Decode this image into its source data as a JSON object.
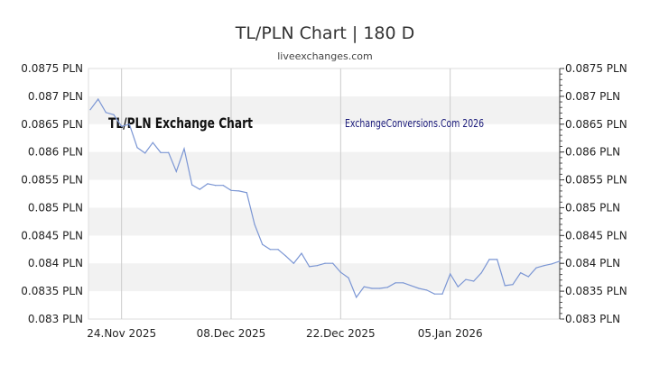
{
  "header": {
    "title": "TL/PLN Chart | 180 D",
    "subtitle": "liveexchanges.com"
  },
  "chart_data": {
    "type": "line",
    "title": "TL/PLN Chart | 180 D",
    "subtitle": "liveexchanges.com",
    "annotations": [
      "TL/PLN Exchange Chart",
      "ExchangeConversions.Com 2026"
    ],
    "ylim": [
      0.083,
      0.0875
    ],
    "y_ticks": [
      "0.0875 PLN",
      "0.087 PLN",
      "0.0865 PLN",
      "0.086 PLN",
      "0.0855 PLN",
      "0.085 PLN",
      "0.0845 PLN",
      "0.084 PLN",
      "0.0835 PLN",
      "0.083 PLN"
    ],
    "y_tick_values": [
      0.0875,
      0.087,
      0.0865,
      0.086,
      0.0855,
      0.085,
      0.0845,
      0.084,
      0.0835,
      0.083
    ],
    "x_ticks": [
      {
        "label": "24.Nov 2025",
        "date": "2025-11-24"
      },
      {
        "label": "08.Dec 2025",
        "date": "2025-12-08"
      },
      {
        "label": "22.Dec 2025",
        "date": "2025-12-22"
      },
      {
        "label": "05.Jan 2026",
        "date": "2026-01-05"
      }
    ],
    "grid": "alternating horizontal bands, vertical lines at x ticks",
    "line_color": "#7b96d4",
    "band_color": "#f2f2f2",
    "x": [
      "2025-11-20",
      "2025-11-21",
      "2025-11-22",
      "2025-11-23",
      "2025-11-24",
      "2025-11-25",
      "2025-11-26",
      "2025-11-27",
      "2025-11-28",
      "2025-11-29",
      "2025-11-30",
      "2025-12-01",
      "2025-12-02",
      "2025-12-03",
      "2025-12-04",
      "2025-12-05",
      "2025-12-06",
      "2025-12-07",
      "2025-12-08",
      "2025-12-09",
      "2025-12-10",
      "2025-12-11",
      "2025-12-12",
      "2025-12-13",
      "2025-12-14",
      "2025-12-15",
      "2025-12-16",
      "2025-12-17",
      "2025-12-18",
      "2025-12-19",
      "2025-12-20",
      "2025-12-21",
      "2025-12-22",
      "2025-12-23",
      "2025-12-24",
      "2025-12-25",
      "2025-12-26",
      "2025-12-27",
      "2025-12-28",
      "2025-12-29",
      "2025-12-30",
      "2025-12-31",
      "2026-01-01",
      "2026-01-02",
      "2026-01-03",
      "2026-01-04",
      "2026-01-05",
      "2026-01-06",
      "2026-01-07",
      "2026-01-08",
      "2026-01-09",
      "2026-01-10",
      "2026-01-11",
      "2026-01-12",
      "2026-01-13",
      "2026-01-14",
      "2026-01-15",
      "2026-01-16",
      "2026-01-17",
      "2026-01-18",
      "2026-01-19"
    ],
    "values": [
      0.08676,
      0.08695,
      0.08671,
      0.08667,
      0.08646,
      0.0865,
      0.08608,
      0.08598,
      0.08617,
      0.08599,
      0.08599,
      0.08565,
      0.08606,
      0.08541,
      0.08533,
      0.08543,
      0.0854,
      0.0854,
      0.08531,
      0.0853,
      0.08527,
      0.0847,
      0.08434,
      0.08425,
      0.08425,
      0.08413,
      0.084,
      0.08418,
      0.08394,
      0.08396,
      0.084,
      0.084,
      0.08384,
      0.08374,
      0.08339,
      0.08358,
      0.08355,
      0.08355,
      0.08357,
      0.08365,
      0.08365,
      0.0836,
      0.08355,
      0.08352,
      0.08345,
      0.08345,
      0.08381,
      0.08358,
      0.08371,
      0.08368,
      0.08383,
      0.08407,
      0.08407,
      0.0836,
      0.08362,
      0.08383,
      0.08376,
      0.08392,
      0.08396,
      0.08399,
      0.08404
    ]
  }
}
